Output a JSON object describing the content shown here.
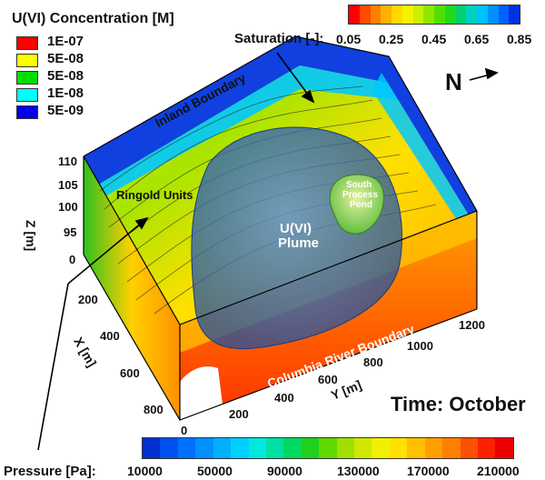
{
  "legend": {
    "title": "U(VI) Concentration [M]",
    "entries": [
      {
        "label": "1E-07",
        "color": "#ff0000"
      },
      {
        "label": "5E-08",
        "color": "#ffff00"
      },
      {
        "label": "5E-08",
        "color": "#00dd00"
      },
      {
        "label": "1E-08",
        "color": "#00ffff"
      },
      {
        "label": "5E-09",
        "color": "#0000ee"
      }
    ]
  },
  "saturation": {
    "title": "Saturation [-]:",
    "ticks": [
      "0.05",
      "0.25",
      "0.45",
      "0.65",
      "0.85"
    ],
    "colors": [
      "#ff0000",
      "#ff4a00",
      "#ff8000",
      "#ffb000",
      "#ffd800",
      "#f4f400",
      "#c8f000",
      "#90e800",
      "#50e000",
      "#20d820",
      "#00d070",
      "#00d0c0",
      "#00c0ff",
      "#0090ff",
      "#0060ff",
      "#0030e0"
    ]
  },
  "pressure": {
    "title": "Pressure [Pa]:",
    "ticks": [
      "10000",
      "50000",
      "90000",
      "130000",
      "170000",
      "210000"
    ],
    "colors": [
      "#0030d0",
      "#0050f0",
      "#0070ff",
      "#0090ff",
      "#00b0ff",
      "#00d0ff",
      "#00e8e0",
      "#00e0a0",
      "#00d860",
      "#20d020",
      "#60d800",
      "#a0e000",
      "#d0e800",
      "#f0f000",
      "#ffe000",
      "#ffc000",
      "#ffa000",
      "#ff8000",
      "#ff5000",
      "#ff2000",
      "#ee0000"
    ]
  },
  "compass": {
    "label": "N"
  },
  "labels": {
    "inland": "Inland Boundary",
    "columbia": "Columbia River Boundary",
    "ringold": "Ringold Units",
    "plume_line1": "U(VI)",
    "plume_line2": "Plume",
    "spp_line1": "South",
    "spp_line2": "Process",
    "spp_line3": "Pond",
    "time": "Time: October"
  },
  "axes": {
    "z_title": "Z [m]",
    "z_ticks": [
      "110",
      "105",
      "100",
      "95",
      "0"
    ],
    "x_title": "X [m]",
    "x_ticks": [
      "200",
      "400",
      "600",
      "800"
    ],
    "y_title": "Y [m]",
    "y_ticks": [
      "0",
      "200",
      "400",
      "600",
      "800",
      "1000",
      "1200"
    ]
  }
}
